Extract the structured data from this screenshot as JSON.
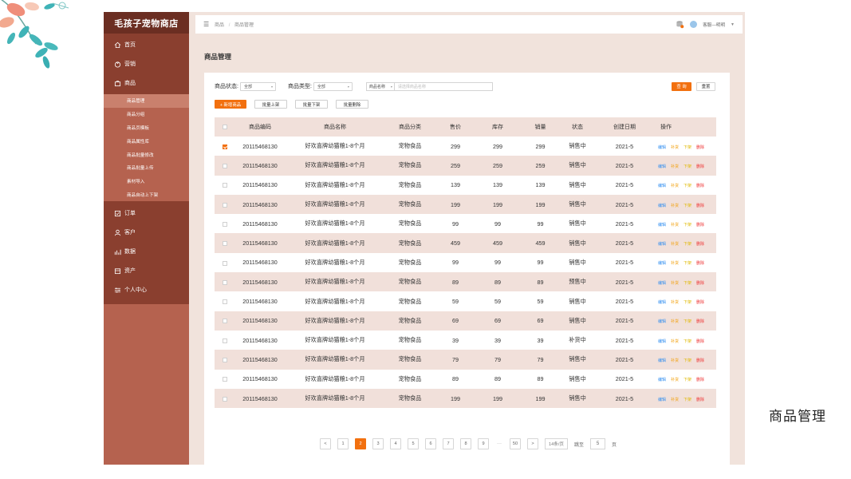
{
  "app": {
    "brand": "毛孩子宠物商店"
  },
  "sidebar": {
    "top_items": [
      {
        "label": "首页",
        "icon": "home-icon"
      },
      {
        "label": "营销",
        "icon": "marketing-icon"
      },
      {
        "label": "商品",
        "icon": "product-icon"
      }
    ],
    "sub_items": [
      {
        "label": "商品管理",
        "active": true
      },
      {
        "label": "商品分组",
        "active": false
      },
      {
        "label": "商品页模板",
        "active": false
      },
      {
        "label": "商品属性库",
        "active": false
      },
      {
        "label": "商品批量修改",
        "active": false
      },
      {
        "label": "商品批量上传",
        "active": false
      },
      {
        "label": "素材导入",
        "active": false
      },
      {
        "label": "商品自动上下架",
        "active": false
      }
    ],
    "bottom_items": [
      {
        "label": "订单",
        "icon": "order-icon"
      },
      {
        "label": "客户",
        "icon": "customer-icon"
      },
      {
        "label": "数据",
        "icon": "data-icon"
      },
      {
        "label": "资产",
        "icon": "asset-icon"
      },
      {
        "label": "个人中心",
        "icon": "settings-icon"
      }
    ]
  },
  "topbar": {
    "breadcrumb": [
      "商品",
      "商品管理"
    ],
    "user_name": "客服—明明"
  },
  "page": {
    "title": "商品管理"
  },
  "filters": {
    "status_label": "商品状态:",
    "status_value": "全部",
    "type_label": "商品类型:",
    "type_value": "全部",
    "search_field": "商品名称",
    "search_placeholder": "请选择商品名称",
    "query_label": "查 询",
    "reset_label": "重置"
  },
  "actions": {
    "add_label": "+ 新增商品",
    "batch_on_label": "批量上架",
    "batch_off_label": "批量下架",
    "batch_delete_label": "批量删除"
  },
  "table": {
    "columns": [
      "商品编码",
      "商品名称",
      "商品分类",
      "售价",
      "库存",
      "销量",
      "状态",
      "创建日期",
      "操作"
    ],
    "op_labels": {
      "edit": "编辑",
      "restock": "补货",
      "off": "下架",
      "delete": "删除"
    },
    "rows": [
      {
        "checked": true,
        "code": "20115468130",
        "name": "好欢喜牌幼猫粮1-8个月",
        "category": "宠物食品",
        "price": "299",
        "stock": "299",
        "sales": "299",
        "status": "销售中",
        "date": "2021-5"
      },
      {
        "checked": false,
        "code": "20115468130",
        "name": "好欢喜牌幼猫粮1-8个月",
        "category": "宠物食品",
        "price": "259",
        "stock": "259",
        "sales": "259",
        "status": "销售中",
        "date": "2021-5"
      },
      {
        "checked": false,
        "code": "20115468130",
        "name": "好欢喜牌幼猫粮1-8个月",
        "category": "宠物食品",
        "price": "139",
        "stock": "139",
        "sales": "139",
        "status": "销售中",
        "date": "2021-5"
      },
      {
        "checked": false,
        "code": "20115468130",
        "name": "好欢喜牌幼猫粮1-8个月",
        "category": "宠物食品",
        "price": "199",
        "stock": "199",
        "sales": "199",
        "status": "销售中",
        "date": "2021-5"
      },
      {
        "checked": false,
        "code": "20115468130",
        "name": "好欢喜牌幼猫粮1-8个月",
        "category": "宠物食品",
        "price": "99",
        "stock": "99",
        "sales": "99",
        "status": "销售中",
        "date": "2021-5"
      },
      {
        "checked": false,
        "code": "20115468130",
        "name": "好欢喜牌幼猫粮1-8个月",
        "category": "宠物食品",
        "price": "459",
        "stock": "459",
        "sales": "459",
        "status": "销售中",
        "date": "2021-5"
      },
      {
        "checked": false,
        "code": "20115468130",
        "name": "好欢喜牌幼猫粮1-8个月",
        "category": "宠物食品",
        "price": "99",
        "stock": "99",
        "sales": "99",
        "status": "销售中",
        "date": "2021-5"
      },
      {
        "checked": false,
        "code": "20115468130",
        "name": "好欢喜牌幼猫粮1-8个月",
        "category": "宠物食品",
        "price": "89",
        "stock": "89",
        "sales": "89",
        "status": "预售中",
        "date": "2021-5"
      },
      {
        "checked": false,
        "code": "20115468130",
        "name": "好欢喜牌幼猫粮1-8个月",
        "category": "宠物食品",
        "price": "59",
        "stock": "59",
        "sales": "59",
        "status": "销售中",
        "date": "2021-5"
      },
      {
        "checked": false,
        "code": "20115468130",
        "name": "好欢喜牌幼猫粮1-8个月",
        "category": "宠物食品",
        "price": "69",
        "stock": "69",
        "sales": "69",
        "status": "销售中",
        "date": "2021-5"
      },
      {
        "checked": false,
        "code": "20115468130",
        "name": "好欢喜牌幼猫粮1-8个月",
        "category": "宠物食品",
        "price": "39",
        "stock": "39",
        "sales": "39",
        "status": "补货中",
        "date": "2021-5"
      },
      {
        "checked": false,
        "code": "20115468130",
        "name": "好欢喜牌幼猫粮1-8个月",
        "category": "宠物食品",
        "price": "79",
        "stock": "79",
        "sales": "79",
        "status": "销售中",
        "date": "2021-5"
      },
      {
        "checked": false,
        "code": "20115468130",
        "name": "好欢喜牌幼猫粮1-8个月",
        "category": "宠物食品",
        "price": "89",
        "stock": "89",
        "sales": "89",
        "status": "销售中",
        "date": "2021-5"
      },
      {
        "checked": false,
        "code": "20115468130",
        "name": "好欢喜牌幼猫粮1-8个月",
        "category": "宠物食品",
        "price": "199",
        "stock": "199",
        "sales": "199",
        "status": "销售中",
        "date": "2021-5"
      }
    ]
  },
  "pagination": {
    "prev": "<",
    "pages": [
      "1",
      "2",
      "3",
      "4",
      "5",
      "6",
      "7",
      "8",
      "9"
    ],
    "current": "2",
    "ellipsis": "···",
    "last": "50",
    "next": ">",
    "page_size": "14条/页",
    "goto_label": "跳至",
    "goto_value": "5",
    "page_unit": "页"
  },
  "caption": "商品管理",
  "colors": {
    "accent": "#f2700f",
    "sidebar_dark": "#8a3f2f",
    "sidebar_light": "#b5624f",
    "brand_bar": "#6b2e22",
    "row_alt": "#f1e0da"
  }
}
